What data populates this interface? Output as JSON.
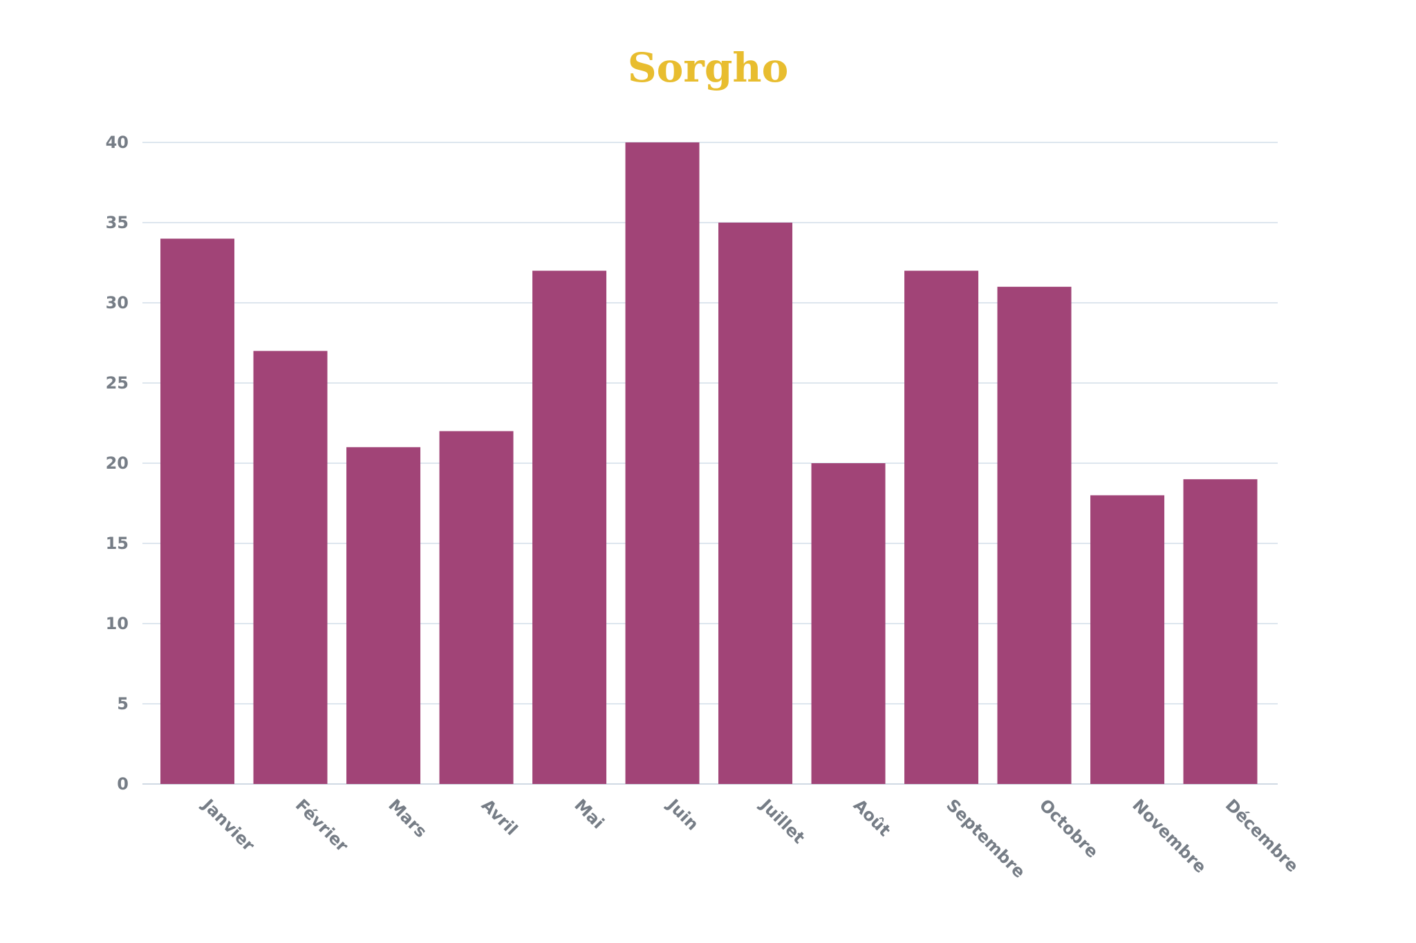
{
  "chart_data": {
    "type": "bar",
    "title": "Sorgho",
    "xlabel": "",
    "ylabel": "",
    "categories": [
      "Janvier",
      "Février",
      "Mars",
      "Avril",
      "Mai",
      "Juin",
      "Juillet",
      "Août",
      "Septembre",
      "Octobre",
      "Novembre",
      "Décembre"
    ],
    "values": [
      34,
      27,
      21,
      22,
      32,
      40,
      35,
      20,
      32,
      31,
      18,
      19
    ],
    "ylim": [
      0,
      40
    ],
    "yticks": [
      0,
      5,
      10,
      15,
      20,
      25,
      30,
      35,
      40
    ],
    "grid": true,
    "legend": "none",
    "colors": {
      "bar": "#a14477",
      "title": "#e8bd2f",
      "grid": "#dde6ee",
      "labels": "#767d86"
    }
  }
}
